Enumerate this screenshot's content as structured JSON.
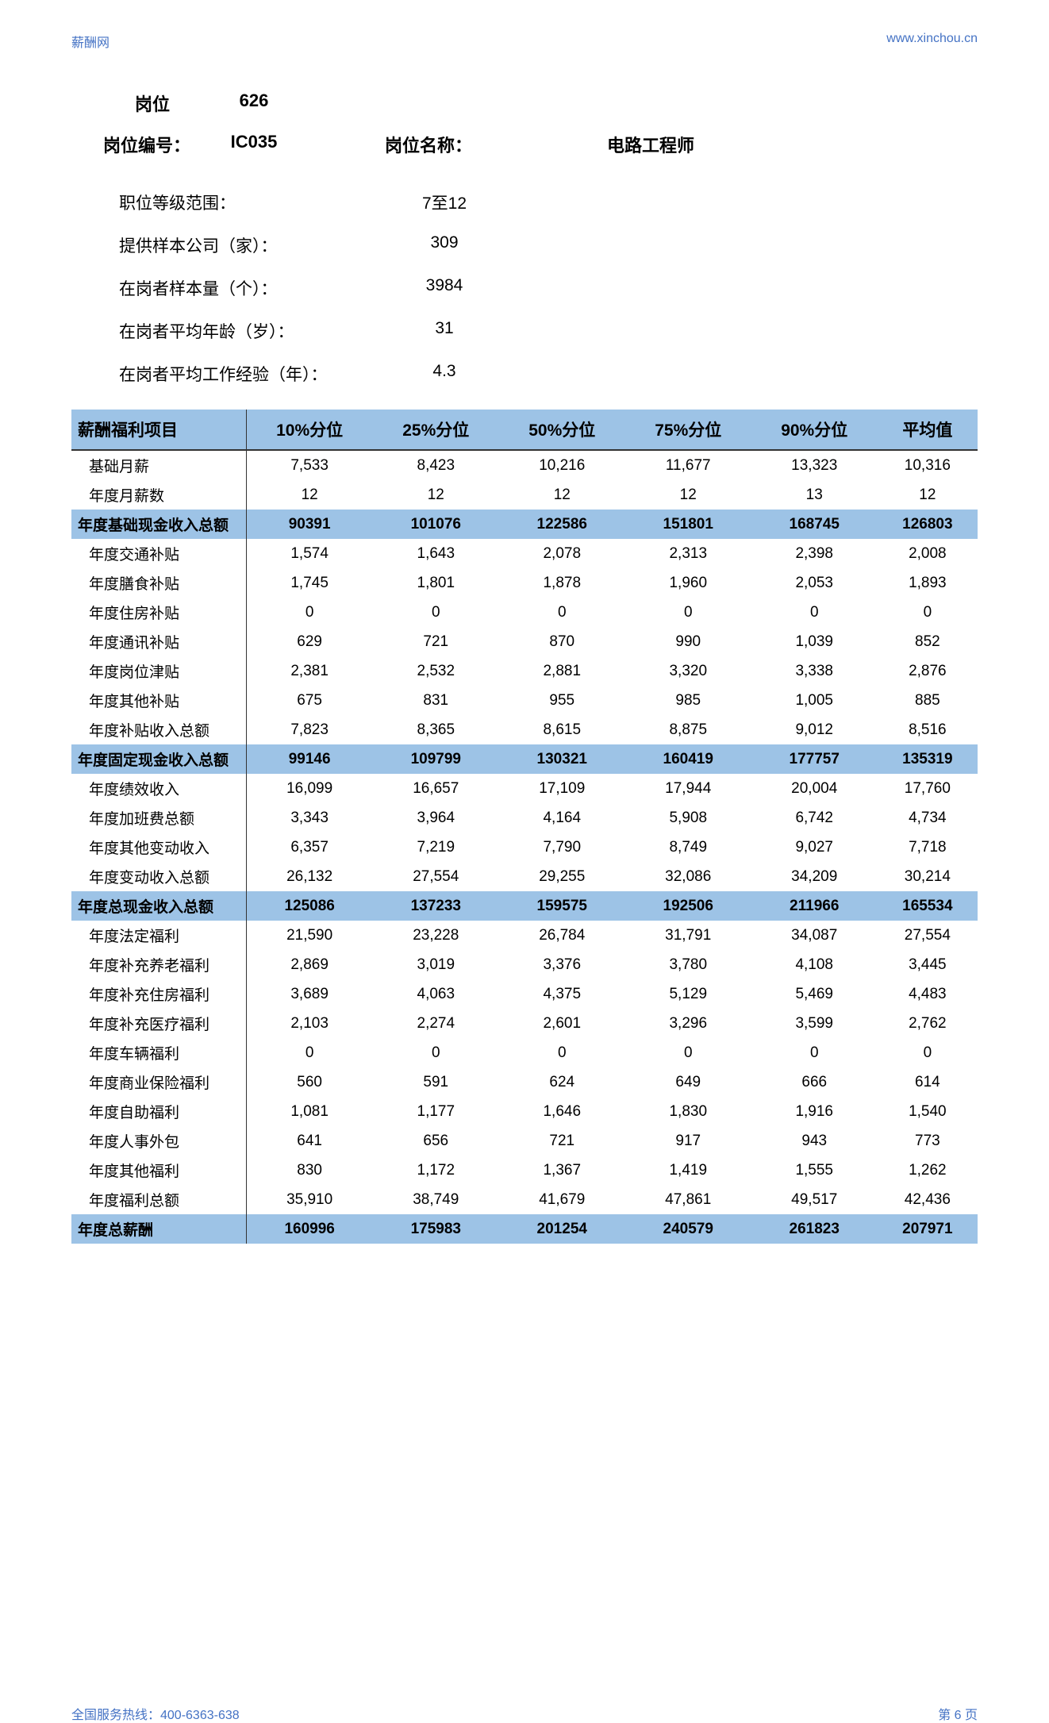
{
  "header": {
    "left": "薪酬网",
    "right": "www.xinchou.cn"
  },
  "meta": {
    "position_label": "岗位",
    "position_value": "626",
    "code_label": "岗位编号：",
    "code_value": "IC035",
    "name_label": "岗位名称：",
    "name_value": "电路工程师"
  },
  "info": [
    {
      "label": "职位等级范围：",
      "value": "7至12"
    },
    {
      "label": "提供样本公司（家）：",
      "value": "309"
    },
    {
      "label": "在岗者样本量（个）：",
      "value": "3984"
    },
    {
      "label": "在岗者平均年龄（岁）：",
      "value": "31"
    },
    {
      "label": "在岗者平均工作经验（年）：",
      "value": "4.3"
    }
  ],
  "table": {
    "headers": [
      "薪酬福利项目",
      "10%分位",
      "25%分位",
      "50%分位",
      "75%分位",
      "90%分位",
      "平均值"
    ],
    "rows": [
      {
        "highlight": false,
        "cells": [
          "基础月薪",
          "7,533",
          "8,423",
          "10,216",
          "11,677",
          "13,323",
          "10,316"
        ]
      },
      {
        "highlight": false,
        "cells": [
          "年度月薪数",
          "12",
          "12",
          "12",
          "12",
          "13",
          "12"
        ]
      },
      {
        "highlight": true,
        "cells": [
          "年度基础现金收入总额",
          "90391",
          "101076",
          "122586",
          "151801",
          "168745",
          "126803"
        ]
      },
      {
        "highlight": false,
        "cells": [
          "年度交通补贴",
          "1,574",
          "1,643",
          "2,078",
          "2,313",
          "2,398",
          "2,008"
        ]
      },
      {
        "highlight": false,
        "cells": [
          "年度膳食补贴",
          "1,745",
          "1,801",
          "1,878",
          "1,960",
          "2,053",
          "1,893"
        ]
      },
      {
        "highlight": false,
        "cells": [
          "年度住房补贴",
          "0",
          "0",
          "0",
          "0",
          "0",
          "0"
        ]
      },
      {
        "highlight": false,
        "cells": [
          "年度通讯补贴",
          "629",
          "721",
          "870",
          "990",
          "1,039",
          "852"
        ]
      },
      {
        "highlight": false,
        "cells": [
          "年度岗位津贴",
          "2,381",
          "2,532",
          "2,881",
          "3,320",
          "3,338",
          "2,876"
        ]
      },
      {
        "highlight": false,
        "cells": [
          "年度其他补贴",
          "675",
          "831",
          "955",
          "985",
          "1,005",
          "885"
        ]
      },
      {
        "highlight": false,
        "cells": [
          "年度补贴收入总额",
          "7,823",
          "8,365",
          "8,615",
          "8,875",
          "9,012",
          "8,516"
        ]
      },
      {
        "highlight": true,
        "cells": [
          "年度固定现金收入总额",
          "99146",
          "109799",
          "130321",
          "160419",
          "177757",
          "135319"
        ]
      },
      {
        "highlight": false,
        "cells": [
          "年度绩效收入",
          "16,099",
          "16,657",
          "17,109",
          "17,944",
          "20,004",
          "17,760"
        ]
      },
      {
        "highlight": false,
        "cells": [
          "年度加班费总额",
          "3,343",
          "3,964",
          "4,164",
          "5,908",
          "6,742",
          "4,734"
        ]
      },
      {
        "highlight": false,
        "cells": [
          "年度其他变动收入",
          "6,357",
          "7,219",
          "7,790",
          "8,749",
          "9,027",
          "7,718"
        ]
      },
      {
        "highlight": false,
        "cells": [
          "年度变动收入总额",
          "26,132",
          "27,554",
          "29,255",
          "32,086",
          "34,209",
          "30,214"
        ]
      },
      {
        "highlight": true,
        "cells": [
          "年度总现金收入总额",
          "125086",
          "137233",
          "159575",
          "192506",
          "211966",
          "165534"
        ]
      },
      {
        "highlight": false,
        "cells": [
          "年度法定福利",
          "21,590",
          "23,228",
          "26,784",
          "31,791",
          "34,087",
          "27,554"
        ]
      },
      {
        "highlight": false,
        "cells": [
          "年度补充养老福利",
          "2,869",
          "3,019",
          "3,376",
          "3,780",
          "4,108",
          "3,445"
        ]
      },
      {
        "highlight": false,
        "cells": [
          "年度补充住房福利",
          "3,689",
          "4,063",
          "4,375",
          "5,129",
          "5,469",
          "4,483"
        ]
      },
      {
        "highlight": false,
        "cells": [
          "年度补充医疗福利",
          "2,103",
          "2,274",
          "2,601",
          "3,296",
          "3,599",
          "2,762"
        ]
      },
      {
        "highlight": false,
        "cells": [
          "年度车辆福利",
          "0",
          "0",
          "0",
          "0",
          "0",
          "0"
        ]
      },
      {
        "highlight": false,
        "cells": [
          "年度商业保险福利",
          "560",
          "591",
          "624",
          "649",
          "666",
          "614"
        ]
      },
      {
        "highlight": false,
        "cells": [
          "年度自助福利",
          "1,081",
          "1,177",
          "1,646",
          "1,830",
          "1,916",
          "1,540"
        ]
      },
      {
        "highlight": false,
        "cells": [
          "年度人事外包",
          "641",
          "656",
          "721",
          "917",
          "943",
          "773"
        ]
      },
      {
        "highlight": false,
        "cells": [
          "年度其他福利",
          "830",
          "1,172",
          "1,367",
          "1,419",
          "1,555",
          "1,262"
        ]
      },
      {
        "highlight": false,
        "cells": [
          "年度福利总额",
          "35,910",
          "38,749",
          "41,679",
          "47,861",
          "49,517",
          "42,436"
        ]
      },
      {
        "highlight": true,
        "cells": [
          "年度总薪酬",
          "160996",
          "175983",
          "201254",
          "240579",
          "261823",
          "207971"
        ]
      }
    ]
  },
  "footer": {
    "left": "全国服务热线：400-6363-638",
    "right": "第 6 页"
  },
  "colors": {
    "header_bg": "#9dc3e6",
    "link": "#4472c4",
    "text": "#000000"
  }
}
